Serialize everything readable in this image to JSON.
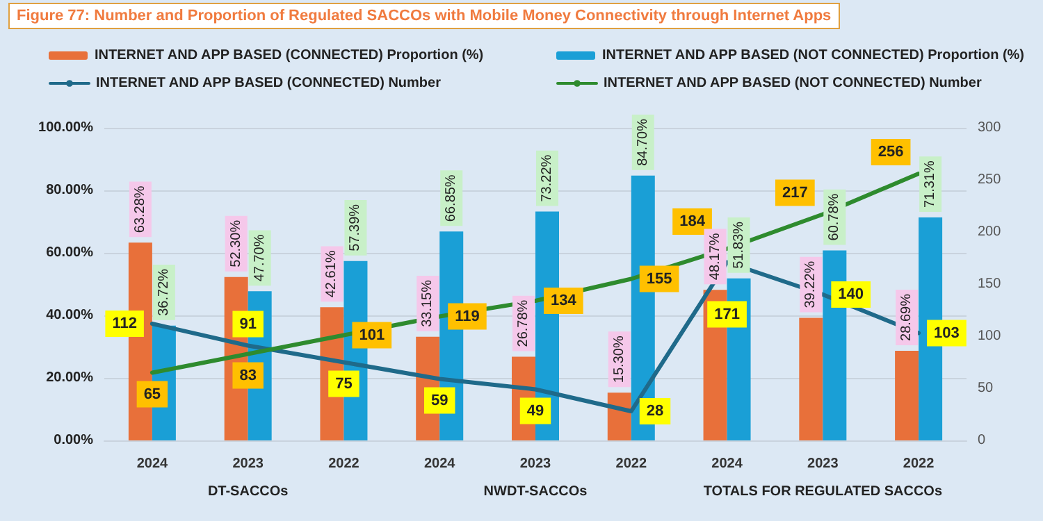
{
  "chart_data": {
    "type": "bar",
    "title": "Figure 77: Number and Proportion of Regulated SACCOs with Mobile Money Connectivity through Internet Apps",
    "categories": [
      "2024",
      "2023",
      "2022",
      "2024",
      "2023",
      "2022",
      "2024",
      "2023",
      "2022"
    ],
    "annotations": [
      "DT-SACCOs",
      "NWDT-SACCOs",
      "TOTALS FOR REGULATED SACCOs"
    ],
    "series": [
      {
        "name": "INTERNET AND APP BASED (CONNECTED) Proportion (%)",
        "color": "#e8703a",
        "values": [
          63.28,
          52.3,
          42.61,
          33.15,
          26.78,
          15.3,
          48.17,
          39.22,
          28.69
        ],
        "value_labels": [
          "63.28%",
          "52.30%",
          "42.61%",
          "33.15%",
          "26.78%",
          "15.30%",
          "48.17%",
          "39.22%",
          "28.69%"
        ]
      },
      {
        "name": "INTERNET AND APP BASED (NOT CONNECTED) Proportion (%)",
        "color": "#1a9fd6",
        "values": [
          36.72,
          47.7,
          57.39,
          66.85,
          73.22,
          84.7,
          51.83,
          60.78,
          71.31
        ],
        "value_labels": [
          "36.72%",
          "47.70%",
          "57.39%",
          "66.85%",
          "73.22%",
          "84.70%",
          "51.83%",
          "60.78%",
          "71.31%"
        ]
      },
      {
        "name": "INTERNET AND APP BASED (CONNECTED) Number",
        "type": "line",
        "axis": "y2",
        "color": "#1f6a8a",
        "values": [
          112,
          91,
          75,
          59,
          49,
          28,
          171,
          140,
          103
        ],
        "value_labels": [
          "112",
          "91",
          "75",
          "59",
          "49",
          "28",
          "171",
          "140",
          "103"
        ]
      },
      {
        "name": "INTERNET AND APP BASED (NOT CONNECTED) Number",
        "type": "line",
        "axis": "y2",
        "color": "#2e8b2e",
        "values": [
          65,
          83,
          101,
          119,
          134,
          155,
          184,
          217,
          256
        ],
        "value_labels": [
          "65",
          "83",
          "101",
          "119",
          "134",
          "155",
          "184",
          "217",
          "256"
        ]
      }
    ],
    "ylim": [
      0,
      100
    ],
    "yticks": [
      {
        "value": 0,
        "label": "0.00%"
      },
      {
        "value": 20,
        "label": "20.00%"
      },
      {
        "value": 40,
        "label": "40.00%"
      },
      {
        "value": 60,
        "label": "60.00%"
      },
      {
        "value": 80,
        "label": "80.00%"
      },
      {
        "value": 100,
        "label": "100.00%"
      }
    ],
    "y2lim": [
      0,
      300
    ],
    "y2ticks": [
      0,
      50,
      100,
      150,
      200,
      250,
      300
    ],
    "grid": "y",
    "legend": "top",
    "marker": "none",
    "line_style": "solid"
  }
}
